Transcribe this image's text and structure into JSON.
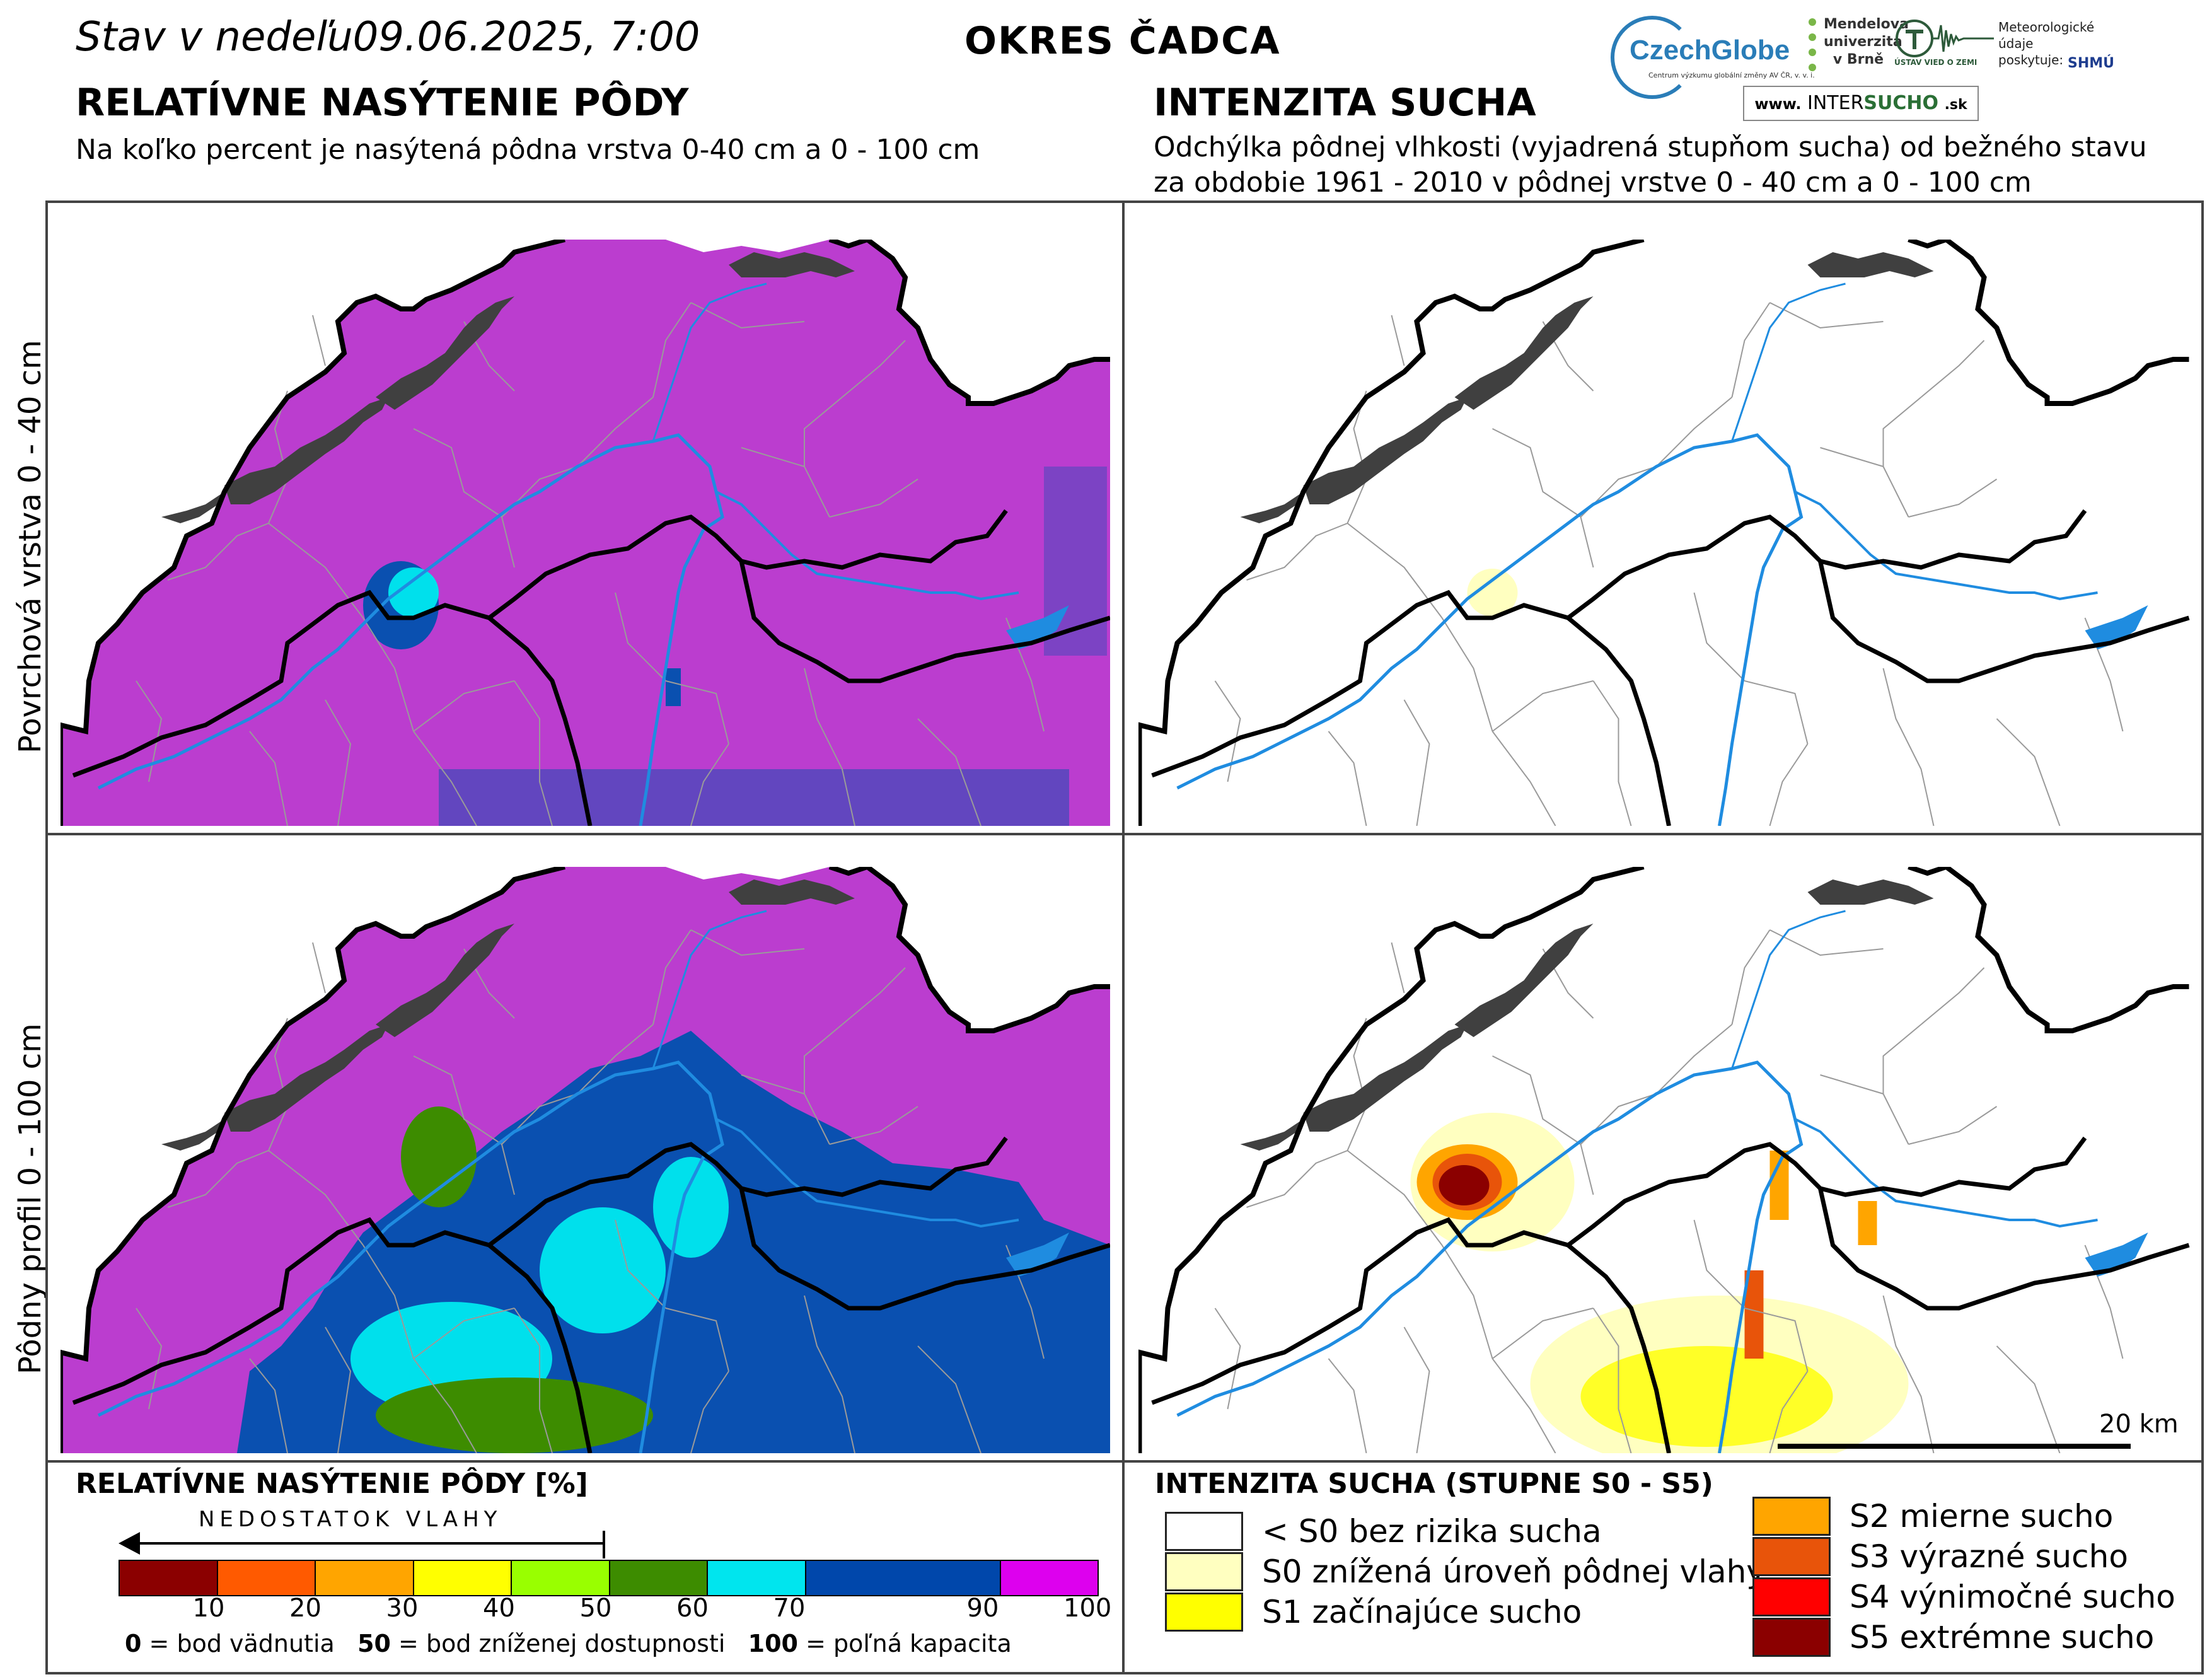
{
  "header": {
    "date_line_prefix": "Stav v nedeľu",
    "date_line_value": "09.06.2025, 7:00",
    "district": "OKRES ČADCA"
  },
  "left_column": {
    "title": "RELATÍVNE NASÝTENIE PÔDY",
    "subtitle": "Na koľko percent je nasýtená pôdna vrstva 0-40 cm a 0 - 100 cm"
  },
  "right_column": {
    "title": "INTENZITA SUCHA",
    "subtitle_line1": "Odchýlka pôdnej vlhkosti (vyjadrená stupňom sucha) od bežného stavu",
    "subtitle_line2": "za obdobie 1961 - 2010 v pôdnej vrstve 0 - 40 cm a 0 - 100 cm"
  },
  "logos": {
    "czechglobe": "CzechGlobe",
    "czechglobe_small": "Centrum výzkumu globální změny AV ČR, v. v. i.",
    "mendel": "Mendelova univerzita v Brně",
    "ustav": "ÚSTAV VIED O ZEMI",
    "meteo": "Meteorologické údaje poskytuje:",
    "shmu": "SHMÚ",
    "intersucho_www": "www.",
    "intersucho_a": "INTER",
    "intersucho_b": "SUCHO",
    "intersucho_sk": ".sk"
  },
  "rows": {
    "top": "Povrchová vrstva 0 - 40 cm",
    "bottom": "Pôdny profil 0 - 100 cm"
  },
  "scale": "20 km",
  "saturation_legend": {
    "title": "RELATÍVNE NASÝTENIE PÔDY [%]",
    "arrow_label": "NEDOSTATOK VLAHY",
    "classes": [
      {
        "from": 0,
        "to": 10,
        "color": "#8b0000"
      },
      {
        "from": 10,
        "to": 20,
        "color": "#ff5a00"
      },
      {
        "from": 20,
        "to": 30,
        "color": "#ffa500"
      },
      {
        "from": 30,
        "to": 40,
        "color": "#ffff00"
      },
      {
        "from": 40,
        "to": 50,
        "color": "#99ff00"
      },
      {
        "from": 50,
        "to": 60,
        "color": "#3d8c00"
      },
      {
        "from": 60,
        "to": 70,
        "color": "#00e5ee"
      },
      {
        "from": 70,
        "to": 90,
        "color": "#0047ab"
      },
      {
        "from": 90,
        "to": 100,
        "color": "#dd00ee"
      }
    ],
    "ticks": [
      "10",
      "20",
      "30",
      "40",
      "50",
      "60",
      "70",
      "90",
      "100"
    ],
    "note_0_value": "0",
    "note_0_text": " = bod vädnutia",
    "note_50_value": "50",
    "note_50_text": " = bod zníženej dostupnosti",
    "note_100_value": "100",
    "note_100_text": " = poľná kapacita"
  },
  "drought_legend": {
    "title": "INTENZITA SUCHA (STUPNE S0 - S5)",
    "items": [
      {
        "label": "< S0 bez rizika sucha",
        "color": "#ffffff"
      },
      {
        "label": "S0 znížená úroveň pôdnej vlahy",
        "color": "#ffffc0"
      },
      {
        "label": "S1 začínajúce sucho",
        "color": "#ffff00"
      },
      {
        "label": "S2 mierne sucho",
        "color": "#ffa500"
      },
      {
        "label": "S3 výrazné sucho",
        "color": "#e8540a"
      },
      {
        "label": "S4 výnimočné sucho",
        "color": "#ff0000"
      },
      {
        "label": "S5 extrémne sucho",
        "color": "#8b0000"
      }
    ]
  },
  "map_colors": {
    "saturated": "#bb3dcf",
    "blue": "#0a50b0",
    "cyan": "#00e0ec",
    "green": "#3d8c00",
    "river": "#1f8ce0",
    "reservoir": "#404040"
  }
}
